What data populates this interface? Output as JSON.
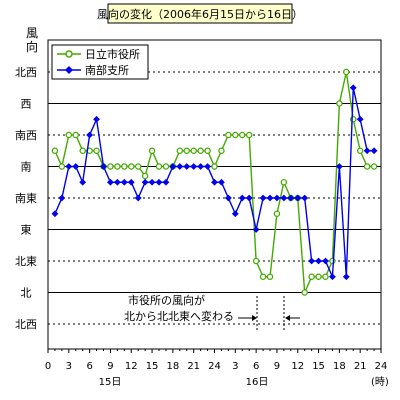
{
  "chart_data": {
    "type": "line",
    "title": "風向の変化（2006年6月15日から16日）",
    "ylabel": "風向",
    "xunit": "(時)",
    "day_labels": [
      "15日",
      "16日"
    ],
    "x_tick_labels": [
      "0",
      "3",
      "6",
      "9",
      "12",
      "15",
      "18",
      "21",
      "24",
      "3",
      "6",
      "9",
      "12",
      "15",
      "18",
      "21",
      "24"
    ],
    "y_categories": [
      "北西",
      "北",
      "北東",
      "東",
      "南東",
      "南",
      "南西",
      "西",
      "北西"
    ],
    "ylim": [
      0,
      8
    ],
    "grid": "horizontal",
    "legend_position": "top-left",
    "series": [
      {
        "name": "日立市役所",
        "color": "#44aa00",
        "marker": "circle-open",
        "x": [
          1,
          2,
          3,
          4,
          5,
          6,
          7,
          8,
          9,
          10,
          11,
          12,
          13,
          14,
          15,
          16,
          17,
          18,
          19,
          20,
          21,
          22,
          23,
          24,
          25,
          26,
          27,
          28,
          29,
          30,
          31,
          32,
          33,
          34,
          35,
          36,
          37,
          38,
          39,
          40,
          41,
          42,
          43,
          44,
          45,
          46,
          47
        ],
        "values": [
          5.5,
          5,
          6,
          6,
          5.5,
          5.5,
          5.5,
          5,
          5,
          5,
          5,
          5,
          5,
          4.7,
          5.5,
          5,
          5,
          5,
          5.5,
          5.5,
          5.5,
          5.5,
          5.5,
          5,
          5.5,
          6,
          6,
          6,
          6,
          2,
          1.5,
          1.5,
          3.5,
          4.5,
          4,
          4,
          1,
          1.5,
          1.5,
          1.5,
          2,
          7,
          8,
          6.5,
          5.5,
          5,
          5
        ]
      },
      {
        "name": "南部支所",
        "color": "#0000ee",
        "marker": "diamond-filled",
        "x": [
          1,
          2,
          3,
          4,
          5,
          6,
          7,
          8,
          9,
          10,
          11,
          12,
          13,
          14,
          15,
          16,
          17,
          18,
          19,
          20,
          21,
          22,
          23,
          24,
          25,
          26,
          27,
          28,
          29,
          30,
          31,
          32,
          33,
          34,
          35,
          36,
          37,
          38,
          39,
          40,
          41,
          42,
          43,
          44,
          45,
          46,
          47
        ],
        "values": [
          3.5,
          4,
          5,
          5,
          4.5,
          6,
          6.5,
          5,
          4.5,
          4.5,
          4.5,
          4.5,
          4,
          4.5,
          4.5,
          4.5,
          4.5,
          5,
          5,
          5,
          5,
          5,
          5,
          4.5,
          4.5,
          4,
          3.5,
          4,
          4,
          3,
          4,
          4,
          4,
          4,
          4,
          4,
          4,
          2,
          2,
          2,
          1.5,
          5,
          1.5,
          7.5,
          6.5,
          5.5,
          5.5
        ]
      }
    ],
    "annotations": [
      {
        "text": "市役所の風向が"
      },
      {
        "text": "北から北北東へ変わる"
      }
    ]
  },
  "colors": {
    "title_bg": "#ffffcc",
    "plot_border": "#000000",
    "grid_dashed": "#000000"
  }
}
